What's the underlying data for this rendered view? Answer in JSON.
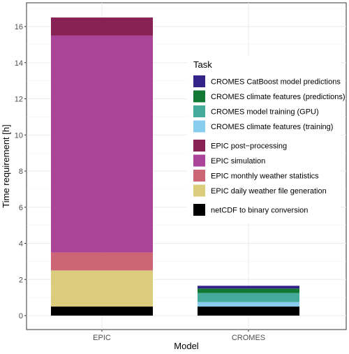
{
  "chart_data": {
    "type": "bar",
    "stacked": true,
    "xlabel": "Model",
    "ylabel": "Time requirement [h]",
    "ylim": [
      0,
      17
    ],
    "yticks": [
      0,
      2,
      4,
      6,
      8,
      10,
      12,
      14,
      16
    ],
    "grid": true,
    "legend_position": "right-inside",
    "legend_title": "Task",
    "categories": [
      "EPIC",
      "CROMES"
    ],
    "stack_order": [
      "netCDF to binary conversion",
      "EPIC daily weather file generation",
      "EPIC monthly weather statistics",
      "EPIC simulation",
      "EPIC post−processing",
      "CROMES climate features (training)",
      "CROMES model training (GPU)",
      "CROMES climate features (predictions)",
      "CROMES CatBoost model predictions"
    ],
    "legend_groups": [
      [
        "CROMES CatBoost model predictions",
        "CROMES climate features (predictions)",
        "CROMES model training (GPU)",
        "CROMES climate features (training)"
      ],
      [
        "EPIC post−processing",
        "EPIC simulation",
        "EPIC monthly weather statistics",
        "EPIC daily weather file generation"
      ],
      [
        "netCDF to binary conversion"
      ]
    ],
    "series": [
      {
        "name": "netCDF to binary conversion",
        "color": "#000000",
        "values": [
          0.5,
          0.5
        ]
      },
      {
        "name": "EPIC daily weather file generation",
        "color": "#dccd7d",
        "values": [
          2.0,
          0
        ]
      },
      {
        "name": "EPIC monthly weather statistics",
        "color": "#cc6677",
        "values": [
          1.0,
          0
        ]
      },
      {
        "name": "EPIC simulation",
        "color": "#aa4499",
        "values": [
          12.0,
          0
        ]
      },
      {
        "name": "EPIC post−processing",
        "color": "#882255",
        "values": [
          1.0,
          0
        ]
      },
      {
        "name": "CROMES climate features (training)",
        "color": "#88ccee",
        "values": [
          0,
          0.25
        ]
      },
      {
        "name": "CROMES model training (GPU)",
        "color": "#44aa99",
        "values": [
          0,
          0.5
        ]
      },
      {
        "name": "CROMES climate features (predictions)",
        "color": "#117733",
        "values": [
          0,
          0.25
        ]
      },
      {
        "name": "CROMES CatBoost model predictions",
        "color": "#332288",
        "values": [
          0,
          0.15
        ]
      }
    ]
  }
}
